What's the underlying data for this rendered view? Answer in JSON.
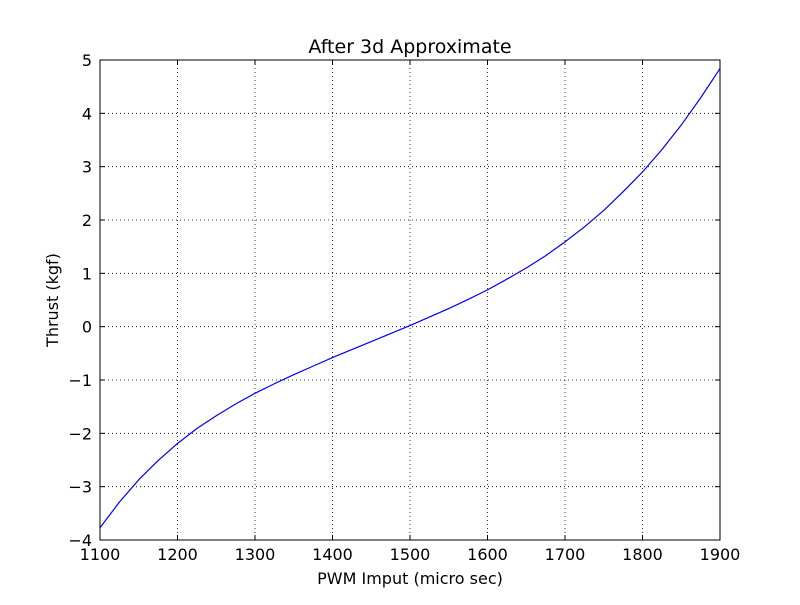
{
  "chart_data": {
    "type": "line",
    "title": "After 3d Approximate",
    "xlabel": "PWM Imput (micro sec)",
    "ylabel": "Thrust (kgf)",
    "xlim": [
      1100,
      1900
    ],
    "ylim": [
      -4,
      5
    ],
    "xticks": [
      "1100",
      "1200",
      "1300",
      "1400",
      "1500",
      "1600",
      "1700",
      "1800",
      "1900"
    ],
    "yticks": [
      "−4",
      "−3",
      "−2",
      "−1",
      "0",
      "1",
      "2",
      "3",
      "4",
      "5"
    ],
    "grid": true,
    "series": [
      {
        "color": "#0000ff",
        "x": [
          1100,
          1125,
          1150,
          1175,
          1200,
          1225,
          1250,
          1275,
          1300,
          1325,
          1350,
          1375,
          1400,
          1425,
          1450,
          1475,
          1500,
          1525,
          1550,
          1575,
          1600,
          1625,
          1650,
          1675,
          1700,
          1725,
          1750,
          1775,
          1800,
          1825,
          1850,
          1875,
          1900
        ],
        "y": [
          -3.77,
          -3.29,
          -2.87,
          -2.51,
          -2.19,
          -1.91,
          -1.67,
          -1.45,
          -1.25,
          -1.07,
          -0.9,
          -0.74,
          -0.58,
          -0.43,
          -0.28,
          -0.13,
          0.02,
          0.18,
          0.34,
          0.51,
          0.69,
          0.89,
          1.1,
          1.33,
          1.59,
          1.87,
          2.18,
          2.53,
          2.9,
          3.32,
          3.78,
          4.29,
          4.84
        ]
      }
    ]
  }
}
